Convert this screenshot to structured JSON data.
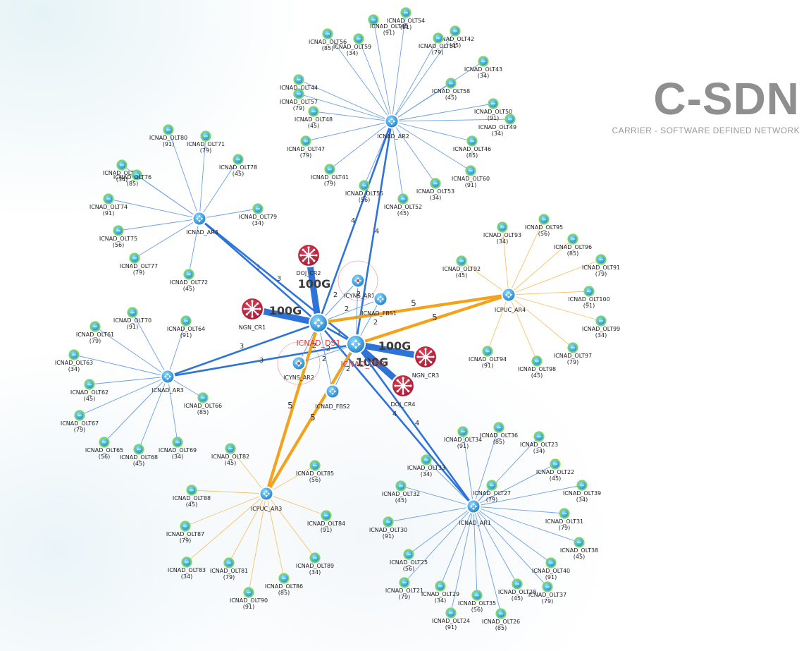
{
  "brand": {
    "title": "C-SDN",
    "subtitle": "CARRIER - SOFTWARE DEFINED NETWORK"
  },
  "colors": {
    "blue_link": "#2e74d8",
    "thin_blue_link": "#6aa0e6",
    "orange_link": "#f3a21a",
    "thin_orange_link": "#f7c26a",
    "router_red": "#c8233a",
    "olt_green": "#7cd66c",
    "switch_blue": "#2aa6e6"
  },
  "routers": [
    {
      "id": "DOJ_CR2",
      "label": "DOJ_CR2"
    },
    {
      "id": "NGN_CR1",
      "label": "NGN_CR1"
    },
    {
      "id": "NGN_CR3",
      "label": "NGN_CR3"
    },
    {
      "id": "DOJ_CR4",
      "label": "DOJ_CR4"
    }
  ],
  "switches": [
    {
      "id": "ICNAD_DS1",
      "label": "ICNAD_DS1",
      "style": "red"
    },
    {
      "id": "ICNAD_DS2",
      "label": "ICNAD_DS2",
      "style": "red"
    },
    {
      "id": "ICNAD_AR1",
      "label": "ICNAD_AR1"
    },
    {
      "id": "ICNAD_AR2",
      "label": "ICNAD_AR2"
    },
    {
      "id": "ICNAD_AR3",
      "label": "ICNAD_AR3"
    },
    {
      "id": "ICNAD_AR4",
      "label": "ICNAD_AR4"
    },
    {
      "id": "ICPUC_AR3",
      "label": "ICPUC_AR3"
    },
    {
      "id": "ICPUC_AR4",
      "label": "ICPUC_AR4"
    },
    {
      "id": "ICYNS_AR1",
      "label": "ICYNS_AR1",
      "halo": true
    },
    {
      "id": "ICYNS_AR2",
      "label": "ICYNS_AR2",
      "halo": true
    },
    {
      "id": "ICNAD_FBS1",
      "label": "ICNAD_FBS1"
    },
    {
      "id": "ICNAD_FBS2",
      "label": "ICNAD_FBS2"
    }
  ],
  "links": [
    {
      "from": "ICNAD_DS1",
      "to": "DOJ_CR2",
      "label": "100G",
      "kind": "bw"
    },
    {
      "from": "ICNAD_DS1",
      "to": "NGN_CR1",
      "label": "100G",
      "kind": "bw"
    },
    {
      "from": "ICNAD_DS2",
      "to": "NGN_CR3",
      "label": "100G",
      "kind": "bw"
    },
    {
      "from": "ICNAD_DS2",
      "to": "DOJ_CR4",
      "label": "100G",
      "kind": "bw"
    },
    {
      "from": "ICNAD_DS1",
      "to": "ICNAD_DS2",
      "label": "1",
      "kind": "core"
    },
    {
      "from": "ICNAD_DS1",
      "to": "ICNAD_AR2",
      "label": "4",
      "kind": "core"
    },
    {
      "from": "ICNAD_DS2",
      "to": "ICNAD_AR2",
      "label": "4",
      "kind": "core"
    },
    {
      "from": "ICNAD_DS1",
      "to": "ICNAD_AR1",
      "label": "4",
      "kind": "core"
    },
    {
      "from": "ICNAD_DS2",
      "to": "ICNAD_AR1",
      "label": "4",
      "kind": "core"
    },
    {
      "from": "ICNAD_DS1",
      "to": "ICNAD_AR4",
      "label": "3",
      "kind": "core"
    },
    {
      "from": "ICNAD_DS2",
      "to": "ICNAD_AR4",
      "label": "3",
      "kind": "core"
    },
    {
      "from": "ICNAD_DS1",
      "to": "ICNAD_AR3",
      "label": "3",
      "kind": "core"
    },
    {
      "from": "ICNAD_DS2",
      "to": "ICNAD_AR3",
      "label": "3",
      "kind": "core"
    },
    {
      "from": "ICNAD_DS1",
      "to": "ICPUC_AR4",
      "label": "5",
      "kind": "orange"
    },
    {
      "from": "ICNAD_DS2",
      "to": "ICPUC_AR4",
      "label": "5",
      "kind": "orange"
    },
    {
      "from": "ICNAD_DS1",
      "to": "ICPUC_AR3",
      "label": "5",
      "kind": "orange"
    },
    {
      "from": "ICNAD_DS2",
      "to": "ICPUC_AR3",
      "label": "5",
      "kind": "orange"
    },
    {
      "from": "ICNAD_DS1",
      "to": "ICYNS_AR1",
      "label": "2",
      "kind": "thin"
    },
    {
      "from": "ICNAD_DS2",
      "to": "ICYNS_AR1",
      "label": "2",
      "kind": "thin"
    },
    {
      "from": "ICNAD_DS1",
      "to": "ICNAD_FBS1",
      "label": "2",
      "kind": "thin"
    },
    {
      "from": "ICNAD_DS2",
      "to": "ICNAD_FBS1",
      "label": "2",
      "kind": "thin"
    },
    {
      "from": "ICNAD_DS1",
      "to": "ICYNS_AR2",
      "label": "2",
      "kind": "thin"
    },
    {
      "from": "ICNAD_DS2",
      "to": "ICYNS_AR2",
      "label": "2",
      "kind": "thin"
    },
    {
      "from": "ICNAD_DS1",
      "to": "ICNAD_FBS2",
      "label": "2",
      "kind": "thin"
    },
    {
      "from": "ICNAD_DS2",
      "to": "ICNAD_FBS2",
      "label": "2",
      "kind": "thin"
    }
  ],
  "olt_groups": [
    {
      "hub": "ICNAD_AR2",
      "color": "blue",
      "olts": [
        {
          "label": "ICNAD_OLT45",
          "value": "91"
        },
        {
          "label": "ICNAD_OLT54",
          "value": "91"
        },
        {
          "label": "ICNAD_OLT42",
          "value": "45"
        },
        {
          "label": "ICNAD_OLT51",
          "value": "79"
        },
        {
          "label": "ICNAD_OLT59",
          "value": "34"
        },
        {
          "label": "ICNAD_OLT56",
          "value": "85"
        },
        {
          "label": "ICNAD_OLT44",
          "value": "91"
        },
        {
          "label": "ICNAD_OLT57",
          "value": "79"
        },
        {
          "label": "ICNAD_OLT43",
          "value": "34"
        },
        {
          "label": "ICNAD_OLT58",
          "value": "45"
        },
        {
          "label": "ICNAD_OLT50",
          "value": "91"
        },
        {
          "label": "ICNAD_OLT48",
          "value": "45"
        },
        {
          "label": "ICNAD_OLT49",
          "value": "34"
        },
        {
          "label": "ICNAD_OLT47",
          "value": "79"
        },
        {
          "label": "ICNAD_OLT46",
          "value": "85"
        },
        {
          "label": "ICNAD_OLT60",
          "value": "91"
        },
        {
          "label": "ICNAD_OLT41",
          "value": "79"
        },
        {
          "label": "ICNAD_OLT55",
          "value": "56"
        },
        {
          "label": "ICNAD_OLT53",
          "value": "34"
        },
        {
          "label": "ICNAD_OLT52",
          "value": "45"
        }
      ]
    },
    {
      "hub": "ICNAD_AR4",
      "color": "blue",
      "olts": [
        {
          "label": "ICNAD_OLT80",
          "value": "91"
        },
        {
          "label": "ICNAD_OLT71",
          "value": "79"
        },
        {
          "label": "ICNAD_OLT73",
          "value": "34"
        },
        {
          "label": "ICNAD_OLT78",
          "value": "45"
        },
        {
          "label": "ICNAD_OLT76",
          "value": "85"
        },
        {
          "label": "ICNAD_OLT74",
          "value": "91"
        },
        {
          "label": "ICNAD_OLT79",
          "value": "34"
        },
        {
          "label": "ICNAD_OLT75",
          "value": "56"
        },
        {
          "label": "ICNAD_OLT77",
          "value": "79"
        },
        {
          "label": "ICNAD_OLT72",
          "value": "45"
        }
      ]
    },
    {
      "hub": "ICNAD_AR3",
      "color": "blue",
      "olts": [
        {
          "label": "ICNAD_OLT70",
          "value": "91"
        },
        {
          "label": "ICNAD_OLT64",
          "value": "91"
        },
        {
          "label": "ICNAD_OLT61",
          "value": "79"
        },
        {
          "label": "ICNAD_OLT63",
          "value": "34"
        },
        {
          "label": "ICNAD_OLT62",
          "value": "45"
        },
        {
          "label": "ICNAD_OLT66",
          "value": "85"
        },
        {
          "label": "ICNAD_OLT67",
          "value": "79"
        },
        {
          "label": "ICNAD_OLT65",
          "value": "56"
        },
        {
          "label": "ICNAD_OLT68",
          "value": "45"
        },
        {
          "label": "ICNAD_OLT69",
          "value": "34"
        }
      ]
    },
    {
      "hub": "ICPUC_AR4",
      "color": "orange",
      "olts": [
        {
          "label": "ICNAD_OLT95",
          "value": "56"
        },
        {
          "label": "ICNAD_OLT93",
          "value": "34"
        },
        {
          "label": "ICNAD_OLT96",
          "value": "85"
        },
        {
          "label": "ICNAD_OLT92",
          "value": "45"
        },
        {
          "label": "ICNAD_OLT91",
          "value": "79"
        },
        {
          "label": "ICNAD_OLT100",
          "value": "91"
        },
        {
          "label": "ICNAD_OLT99",
          "value": "34"
        },
        {
          "label": "ICNAD_OLT94",
          "value": "91"
        },
        {
          "label": "ICNAD_OLT98",
          "value": "45"
        },
        {
          "label": "ICNAD_OLT97",
          "value": "79"
        }
      ]
    },
    {
      "hub": "ICPUC_AR3",
      "color": "orange",
      "olts": [
        {
          "label": "ICNAD_OLT82",
          "value": "45"
        },
        {
          "label": "ICNAD_OLT85",
          "value": "56"
        },
        {
          "label": "ICNAD_OLT88",
          "value": "45"
        },
        {
          "label": "ICNAD_OLT84",
          "value": "91"
        },
        {
          "label": "ICNAD_OLT87",
          "value": "79"
        },
        {
          "label": "ICNAD_OLT89",
          "value": "34"
        },
        {
          "label": "ICNAD_OLT83",
          "value": "34"
        },
        {
          "label": "ICNAD_OLT81",
          "value": "79"
        },
        {
          "label": "ICNAD_OLT86",
          "value": "85"
        },
        {
          "label": "ICNAD_OLT90",
          "value": "91"
        }
      ]
    },
    {
      "hub": "ICNAD_AR1",
      "color": "blue",
      "olts": [
        {
          "label": "ICNAD_OLT34",
          "value": "91"
        },
        {
          "label": "ICNAD_OLT36",
          "value": "85"
        },
        {
          "label": "ICNAD_OLT23",
          "value": "34"
        },
        {
          "label": "ICNAD_OLT33",
          "value": "34"
        },
        {
          "label": "ICNAD_OLT22",
          "value": "45"
        },
        {
          "label": "ICNAD_OLT27",
          "value": "79"
        },
        {
          "label": "ICNAD_OLT32",
          "value": "45"
        },
        {
          "label": "ICNAD_OLT39",
          "value": "34"
        },
        {
          "label": "ICNAD_OLT31",
          "value": "79"
        },
        {
          "label": "ICNAD_OLT30",
          "value": "91"
        },
        {
          "label": "ICNAD_OLT38",
          "value": "45"
        },
        {
          "label": "ICNAD_OLT25",
          "value": "56"
        },
        {
          "label": "ICNAD_OLT40",
          "value": "91"
        },
        {
          "label": "ICNAD_OLT21",
          "value": "79"
        },
        {
          "label": "ICNAD_OLT29",
          "value": "34"
        },
        {
          "label": "ICNAD_OLT28",
          "value": "45"
        },
        {
          "label": "ICNAD_OLT37",
          "value": "79"
        },
        {
          "label": "ICNAD_OLT35",
          "value": "56"
        },
        {
          "label": "ICNAD_OLT24",
          "value": "91"
        },
        {
          "label": "ICNAD_OLT26",
          "value": "85"
        }
      ]
    }
  ]
}
